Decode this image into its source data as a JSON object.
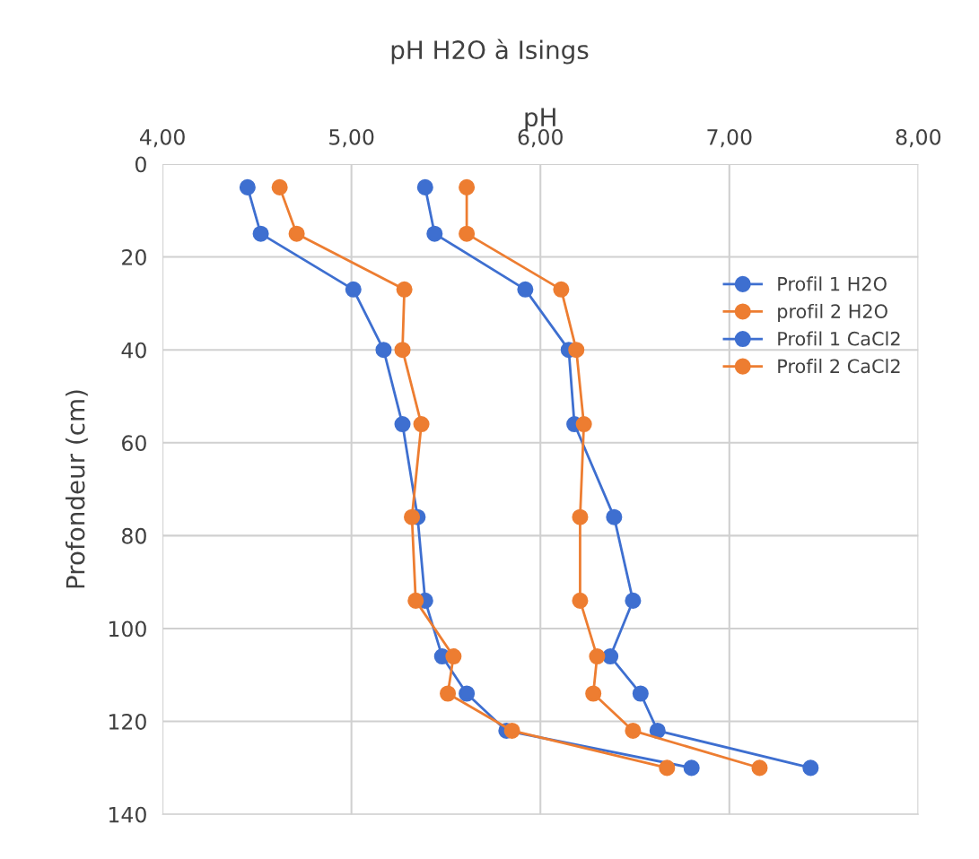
{
  "chart_data": {
    "type": "line",
    "title": "pH H2O à Isings",
    "xlabel": "pH",
    "ylabel": "Profondeur (cm)",
    "xlim": [
      4,
      8
    ],
    "xticks": [
      {
        "value": 4,
        "label": "4,00"
      },
      {
        "value": 5,
        "label": "5,00"
      },
      {
        "value": 6,
        "label": "6,00"
      },
      {
        "value": 7,
        "label": "7,00"
      },
      {
        "value": 8,
        "label": "8,00"
      }
    ],
    "ylim": [
      140,
      0
    ],
    "yticks": [
      0,
      20,
      40,
      60,
      80,
      100,
      120,
      140
    ],
    "grid": true,
    "legend": "right",
    "marker": "circle",
    "line_style": "solid",
    "series": [
      {
        "name": "Profil 1 H2O",
        "color": "#3e6fd0",
        "x": [
          5.39,
          5.44,
          5.92,
          6.15,
          6.18,
          6.39,
          6.49,
          6.37,
          6.53,
          6.62,
          7.43
        ],
        "values": [
          5,
          15,
          27,
          40,
          56,
          76,
          94,
          106,
          114,
          122,
          130
        ]
      },
      {
        "name": "profil 2 H2O",
        "color": "#ed7d31",
        "x": [
          5.61,
          5.61,
          6.11,
          6.19,
          6.23,
          6.21,
          6.21,
          6.3,
          6.28,
          6.49,
          7.16
        ],
        "values": [
          5,
          15,
          27,
          40,
          56,
          76,
          94,
          106,
          114,
          122,
          130
        ]
      },
      {
        "name": "Profil 1 CaCl2",
        "color": "#3e6fd0",
        "x": [
          4.45,
          4.52,
          5.01,
          5.17,
          5.27,
          5.35,
          5.39,
          5.48,
          5.61,
          5.82,
          6.8
        ],
        "values": [
          5,
          15,
          27,
          40,
          56,
          76,
          94,
          106,
          114,
          122,
          130
        ]
      },
      {
        "name": "Profil 2 CaCl2",
        "color": "#ed7d31",
        "x": [
          4.62,
          4.71,
          5.28,
          5.27,
          5.37,
          5.32,
          5.34,
          5.54,
          5.51,
          5.85,
          6.67
        ],
        "values": [
          5,
          15,
          27,
          40,
          56,
          76,
          94,
          106,
          114,
          122,
          130
        ]
      }
    ]
  }
}
